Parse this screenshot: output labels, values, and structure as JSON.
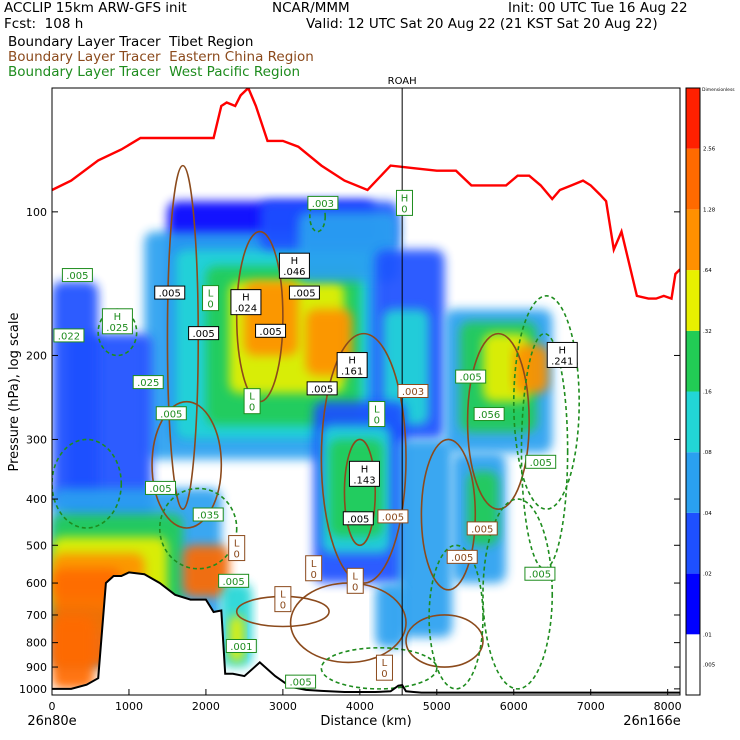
{
  "header": {
    "model": "ACCLIP 15km ARW-GFS init",
    "org": "NCAR/MMM",
    "init": "Init: 00 UTC Tue 16 Aug 22",
    "fcst": "Fcst:  108 h",
    "valid": "Valid: 12 UTC Sat 20 Aug 22 (21 KST Sat 20 Aug 22)"
  },
  "tracers": [
    {
      "label": "Boundary Layer Tracer  Tibet Region",
      "color": "#000000"
    },
    {
      "label": "Boundary Layer Tracer  Eastern China Region",
      "color": "#8b4a1c"
    },
    {
      "label": "Boundary Layer Tracer  West Pacific Region",
      "color": "#1e8c1e"
    }
  ],
  "chart_data": {
    "type": "heatmap",
    "title": "",
    "xlabel": "Distance (km)",
    "ylabel": "Pressure (hPa), log scale",
    "x_range": [
      0,
      8160
    ],
    "y_range": [
      1030,
      55
    ],
    "y_scale": "log",
    "x_ticks": [
      0,
      1000,
      2000,
      3000,
      4000,
      5000,
      6000,
      7000,
      8000
    ],
    "y_ticks": [
      100,
      200,
      300,
      400,
      500,
      600,
      700,
      800,
      900,
      1000
    ],
    "endpoint_left": "26n80e",
    "endpoint_right": "26n166e",
    "station": {
      "label": "ROAH",
      "x": 4550
    },
    "colorbar": {
      "title": "Dimensionless",
      "levels": [
        ".005",
        ".01",
        ".02",
        ".04",
        ".08",
        ".16",
        ".32",
        ".64",
        "1.28",
        "2.56"
      ],
      "colors": [
        "#ffffff",
        "#0000ff",
        "#1e50ff",
        "#2aa0f0",
        "#22d6d6",
        "#22cc55",
        "#e8f000",
        "#ff9000",
        "#ff6a00",
        "#ff2000"
      ]
    },
    "tropopause_line": {
      "color": "#ff0000",
      "x": [
        0,
        250,
        600,
        900,
        1150,
        1400,
        1750,
        2100,
        2200,
        2270,
        2380,
        2450,
        2550,
        2650,
        2800,
        3000,
        3200,
        3500,
        3800,
        4100,
        4400,
        4700,
        5000,
        5250,
        5450,
        5650,
        5900,
        6050,
        6200,
        6350,
        6500,
        6600,
        6750,
        6900,
        7000,
        7120,
        7200,
        7300,
        7400,
        7600,
        7750,
        7850,
        7950,
        8050,
        8100,
        8160
      ],
      "y": [
        90,
        86,
        78,
        74,
        70,
        70,
        70,
        70,
        60,
        59,
        60,
        57,
        55,
        60,
        71,
        71,
        73,
        80,
        86,
        90,
        80,
        81,
        82,
        82,
        88,
        88,
        88,
        84,
        84,
        88,
        94,
        90,
        88,
        86,
        88,
        92,
        95,
        120,
        110,
        150,
        152,
        152,
        150,
        152,
        135,
        132
      ]
    },
    "surface_line": {
      "color": "#000000",
      "x": [
        0,
        250,
        450,
        600,
        700,
        800,
        900,
        1000,
        1200,
        1400,
        1600,
        1800,
        2000,
        2100,
        2200,
        2250,
        2300,
        2350,
        2500,
        2700,
        2900,
        3100,
        3300,
        3500,
        3800,
        4200,
        4400,
        4500,
        4550,
        4600,
        4700,
        4800,
        5000,
        6000,
        7000,
        8160
      ],
      "y": [
        1000,
        1000,
        980,
        950,
        600,
        580,
        580,
        570,
        575,
        600,
        635,
        650,
        650,
        690,
        685,
        930,
        930,
        930,
        940,
        880,
        940,
        990,
        1005,
        1010,
        1015,
        1015,
        1012,
        985,
        982,
        1012,
        1015,
        1018,
        1018,
        1018,
        1018,
        1018
      ]
    },
    "contour_labels": [
      {
        "text": "H",
        "sub": "0",
        "x": 4580,
        "y": 96,
        "series": "West Pacific Region"
      },
      {
        "text": ".003",
        "x": 3520,
        "y": 96,
        "series": "West Pacific Region"
      },
      {
        "text": "H",
        "sub": ".046",
        "x": 3150,
        "y": 130,
        "series": "Tibet Region"
      },
      {
        "text": ".005",
        "x": 330,
        "y": 136,
        "series": "West Pacific Region"
      },
      {
        "text": ".005",
        "x": 1530,
        "y": 148,
        "series": "Tibet Region"
      },
      {
        "text": "L",
        "sub": "0",
        "x": 2060,
        "y": 152,
        "series": "West Pacific Region"
      },
      {
        "text": "H",
        "sub": ".024",
        "x": 2520,
        "y": 155,
        "series": "Tibet Region"
      },
      {
        "text": ".005",
        "x": 3280,
        "y": 148,
        "series": "Tibet Region"
      },
      {
        "text": "H",
        "sub": ".025",
        "x": 850,
        "y": 170,
        "series": "West Pacific Region"
      },
      {
        "text": ".005",
        "x": 1970,
        "y": 180,
        "series": "Tibet Region"
      },
      {
        "text": ".005",
        "x": 2840,
        "y": 178,
        "series": "Tibet Region"
      },
      {
        "text": ".022",
        "x": 220,
        "y": 182,
        "series": "West Pacific Region"
      },
      {
        "text": "H",
        "sub": ".241",
        "x": 6630,
        "y": 200,
        "series": "Tibet Region"
      },
      {
        "text": "H",
        "sub": ".161",
        "x": 3900,
        "y": 210,
        "series": "Tibet Region"
      },
      {
        "text": ".005",
        "x": 5440,
        "y": 222,
        "series": "West Pacific Region"
      },
      {
        "text": ".025",
        "x": 1250,
        "y": 228,
        "series": "West Pacific Region"
      },
      {
        "text": ".005",
        "x": 3510,
        "y": 235,
        "series": "Tibet Region"
      },
      {
        "text": ".003",
        "x": 4690,
        "y": 238,
        "series": "Eastern China Region"
      },
      {
        "text": "L",
        "sub": "0",
        "x": 2600,
        "y": 250,
        "series": "West Pacific Region"
      },
      {
        "text": ".005",
        "x": 1550,
        "y": 265,
        "series": "West Pacific Region"
      },
      {
        "text": "L",
        "sub": "0",
        "x": 4220,
        "y": 266,
        "series": "West Pacific Region"
      },
      {
        "text": ".056",
        "x": 5680,
        "y": 266,
        "series": "West Pacific Region"
      },
      {
        "text": "H",
        "sub": ".143",
        "x": 4060,
        "y": 355,
        "series": "Tibet Region"
      },
      {
        "text": ".005",
        "x": 6350,
        "y": 335,
        "series": "West Pacific Region"
      },
      {
        "text": ".005",
        "x": 1410,
        "y": 380,
        "series": "West Pacific Region"
      },
      {
        "text": ".005",
        "x": 3980,
        "y": 440,
        "series": "Tibet Region"
      },
      {
        "text": ".005",
        "x": 4430,
        "y": 436,
        "series": "Eastern China Region"
      },
      {
        "text": ".035",
        "x": 2030,
        "y": 432,
        "series": "West Pacific Region"
      },
      {
        "text": ".005",
        "x": 5590,
        "y": 462,
        "series": "Eastern China Region"
      },
      {
        "text": "L",
        "sub": "0",
        "x": 2400,
        "y": 508,
        "series": "Eastern China Region"
      },
      {
        "text": ".005",
        "x": 5330,
        "y": 530,
        "series": "Eastern China Region"
      },
      {
        "text": "L",
        "sub": "0",
        "x": 3400,
        "y": 560,
        "series": "Eastern China Region"
      },
      {
        "text": "L",
        "sub": "0",
        "x": 3940,
        "y": 595,
        "series": "Eastern China Region"
      },
      {
        "text": ".005",
        "x": 6340,
        "y": 575,
        "series": "West Pacific Region"
      },
      {
        "text": ".005",
        "x": 2360,
        "y": 595,
        "series": "West Pacific Region"
      },
      {
        "text": "L",
        "sub": "0",
        "x": 3000,
        "y": 650,
        "series": "Eastern China Region"
      },
      {
        "text": ".001",
        "x": 2460,
        "y": 815,
        "series": "West Pacific Region"
      },
      {
        "text": ".005",
        "x": 3230,
        "y": 968,
        "series": "West Pacific Region"
      },
      {
        "text": "L",
        "sub": "0",
        "x": 4320,
        "y": 905,
        "series": "Eastern China Region"
      }
    ]
  }
}
